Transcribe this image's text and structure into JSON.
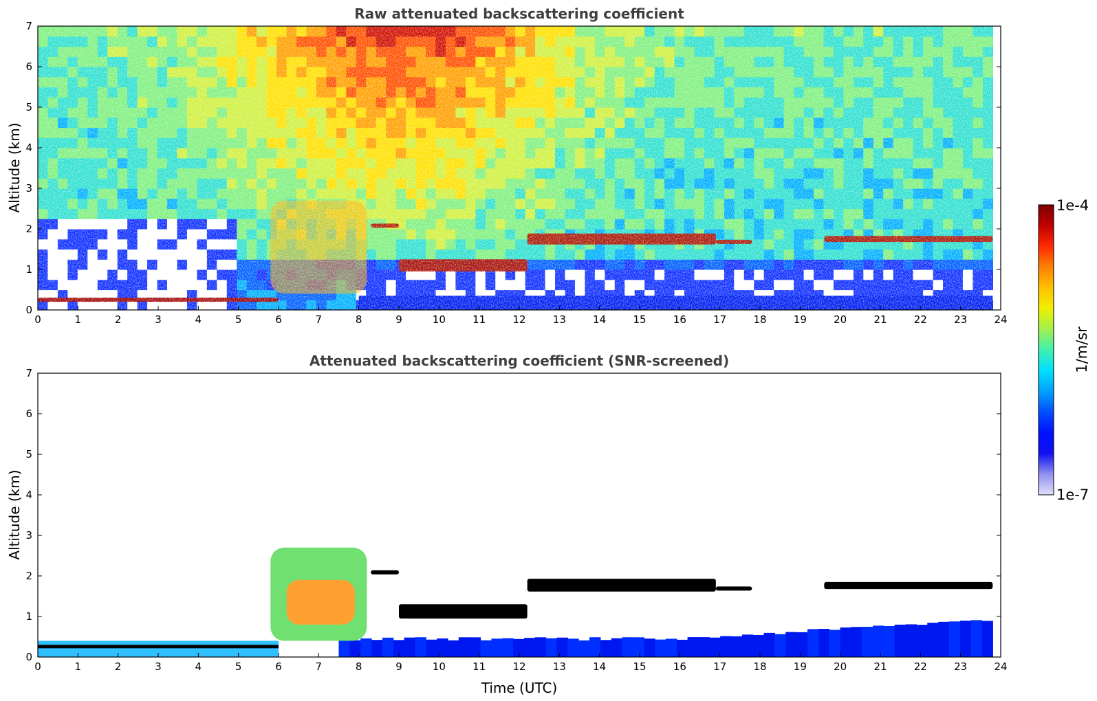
{
  "figure": {
    "colorbar": {
      "top_label": "1e-4",
      "bottom_label": "1e-7",
      "unit_label": "1/m/sr",
      "colormap": [
        "#7a0000",
        "#c00000",
        "#ff2a00",
        "#ff8000",
        "#ffc000",
        "#f0f000",
        "#a0f050",
        "#40f0b0",
        "#00e0ff",
        "#00a0ff",
        "#0050ff",
        "#0010ff",
        "#1010f0",
        "#9090f0",
        "#e0e0fa"
      ]
    }
  },
  "chart_data": [
    {
      "type": "heatmap",
      "title": "Raw attenuated backscattering coefficient",
      "xlabel": "",
      "ylabel": "Altitude (km)",
      "xlim": [
        0,
        24
      ],
      "ylim": [
        0,
        7
      ],
      "xticks": [
        "0",
        "1",
        "2",
        "3",
        "4",
        "5",
        "6",
        "7",
        "8",
        "9",
        "10",
        "11",
        "12",
        "13",
        "14",
        "15",
        "16",
        "17",
        "18",
        "19",
        "20",
        "21",
        "22",
        "23",
        "24"
      ],
      "yticks": [
        "0",
        "1",
        "2",
        "3",
        "4",
        "5",
        "6",
        "7"
      ],
      "colorscale_range": [
        1e-07,
        0.0001
      ],
      "data_end_time": 23.8,
      "features": [
        {
          "name": "boundary layer",
          "t0": 0.0,
          "t1": 6.0,
          "z0": 0.12,
          "z1": 0.4
        },
        {
          "name": "aerosol plumes",
          "t0": 5.8,
          "t1": 8.2,
          "z0": 0.4,
          "z1": 2.7
        },
        {
          "name": "cloud layer",
          "t0": 8.3,
          "t1": 9.0,
          "z0": 2.0,
          "z1": 2.2
        },
        {
          "name": "cloud layer",
          "t0": 9.0,
          "t1": 12.2,
          "z0": 0.6,
          "z1": 1.6
        },
        {
          "name": "cloud layer",
          "t0": 12.2,
          "t1": 16.9,
          "z0": 1.3,
          "z1": 2.2
        },
        {
          "name": "cloud layer",
          "t0": 16.9,
          "t1": 17.8,
          "z0": 1.6,
          "z1": 1.8
        },
        {
          "name": "cloud layer",
          "t0": 19.6,
          "t1": 23.8,
          "z0": 1.5,
          "z1": 2.0
        }
      ]
    },
    {
      "type": "heatmap",
      "title": "Attenuated backscattering coefficient (SNR-screened)",
      "xlabel": "Time (UTC)",
      "ylabel": "Altitude (km)",
      "xlim": [
        0,
        24
      ],
      "ylim": [
        0,
        7
      ],
      "xticks": [
        "0",
        "1",
        "2",
        "3",
        "4",
        "5",
        "6",
        "7",
        "8",
        "9",
        "10",
        "11",
        "12",
        "13",
        "14",
        "15",
        "16",
        "17",
        "18",
        "19",
        "20",
        "21",
        "22",
        "23",
        "24"
      ],
      "yticks": [
        "0",
        "1",
        "2",
        "3",
        "4",
        "5",
        "6",
        "7"
      ],
      "colorscale_range": [
        1e-07,
        0.0001
      ],
      "data_end_time": 23.8
    }
  ]
}
